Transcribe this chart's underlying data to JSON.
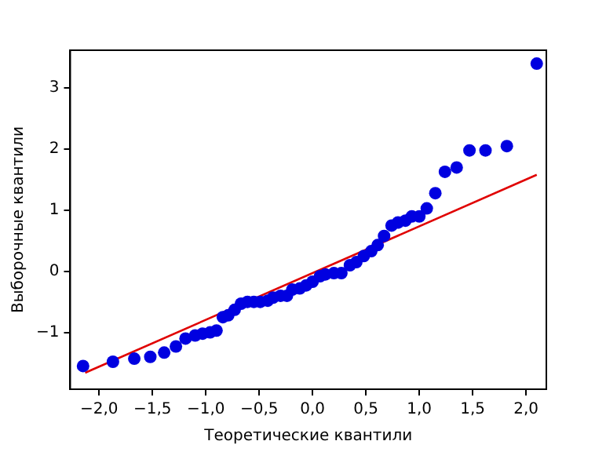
{
  "chart_data": {
    "type": "scatter",
    "xlabel": "Теоретические квантили",
    "ylabel": "Выборочные квантили",
    "xlim": [
      -2.27,
      2.19
    ],
    "ylim": [
      -1.93,
      3.62
    ],
    "xticks": [
      {
        "value": -2,
        "label": "−2,0"
      },
      {
        "value": -1.5,
        "label": "−1,5"
      },
      {
        "value": -1,
        "label": "−1,0"
      },
      {
        "value": -0.5,
        "label": "−0,5"
      },
      {
        "value": 0,
        "label": "0,0"
      },
      {
        "value": 0.5,
        "label": "0,5"
      },
      {
        "value": 1,
        "label": "1,0"
      },
      {
        "value": 1.5,
        "label": "1,5"
      },
      {
        "value": 2,
        "label": "2,0"
      }
    ],
    "yticks": [
      {
        "value": -1,
        "label": "−1"
      },
      0,
      1,
      2,
      3
    ],
    "grid": false,
    "legend": false,
    "marker": "circle",
    "series": [
      {
        "color": "#0000e0",
        "x": [
          -2.15,
          -1.87,
          -1.67,
          -1.52,
          -1.39,
          -1.28,
          -1.19,
          -1.1,
          -1.03,
          -0.96,
          -0.9,
          -0.84,
          -0.79,
          -0.73,
          -0.67,
          -0.61,
          -0.55,
          -0.49,
          -0.42,
          -0.37,
          -0.3,
          -0.24,
          -0.19,
          -0.12,
          -0.06,
          0.0,
          0.07,
          0.12,
          0.2,
          0.27,
          0.35,
          0.41,
          0.48,
          0.55,
          0.61,
          0.67,
          0.74,
          0.8,
          0.87,
          0.93,
          1.0,
          1.07,
          1.15,
          1.24,
          1.35,
          1.47,
          1.62,
          1.82,
          2.1
        ],
        "values": [
          -1.55,
          -1.48,
          -1.43,
          -1.4,
          -1.33,
          -1.23,
          -1.1,
          -1.05,
          -1.02,
          -1.0,
          -0.97,
          -0.75,
          -0.72,
          -0.63,
          -0.53,
          -0.5,
          -0.5,
          -0.5,
          -0.48,
          -0.43,
          -0.4,
          -0.4,
          -0.3,
          -0.28,
          -0.23,
          -0.17,
          -0.08,
          -0.05,
          -0.03,
          -0.03,
          0.1,
          0.15,
          0.25,
          0.33,
          0.43,
          0.58,
          0.75,
          0.8,
          0.83,
          0.9,
          0.9,
          1.03,
          1.28,
          1.63,
          1.7,
          1.98,
          1.98,
          2.05,
          3.4
        ]
      },
      {
        "type": "line",
        "color": "#e00000",
        "x": [
          -2.13,
          2.1
        ],
        "values": [
          -1.66,
          1.58
        ],
        "marker": "none",
        "line_style": "solid"
      }
    ]
  }
}
